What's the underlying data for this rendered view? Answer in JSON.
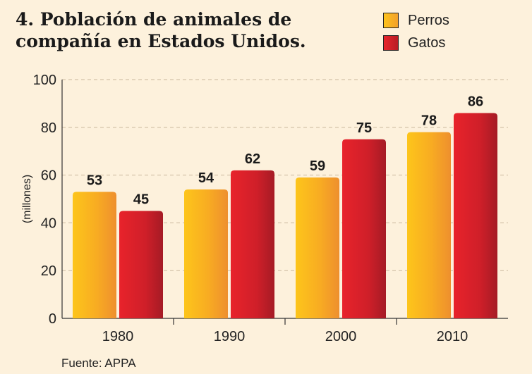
{
  "chart_data": {
    "type": "bar",
    "title": "4. Población de animales de\ncompañía en Estados Unidos.",
    "categories": [
      "1980",
      "1990",
      "2000",
      "2010"
    ],
    "series": [
      {
        "name": "Perros",
        "values": [
          53,
          54,
          59,
          78
        ],
        "color": "#f7b51e"
      },
      {
        "name": "Gatos",
        "values": [
          45,
          62,
          75,
          86
        ],
        "color": "#d6202c"
      }
    ],
    "ylabel": "(millones)",
    "ylim": [
      0,
      100
    ],
    "yticks": [
      0,
      20,
      40,
      60,
      80,
      100
    ],
    "grid": true,
    "legend": "top-right",
    "source": "Fuente: APPA"
  },
  "colors": {
    "background": "#fdf1dc",
    "grid": "#c9b79d",
    "axis": "#333333"
  }
}
